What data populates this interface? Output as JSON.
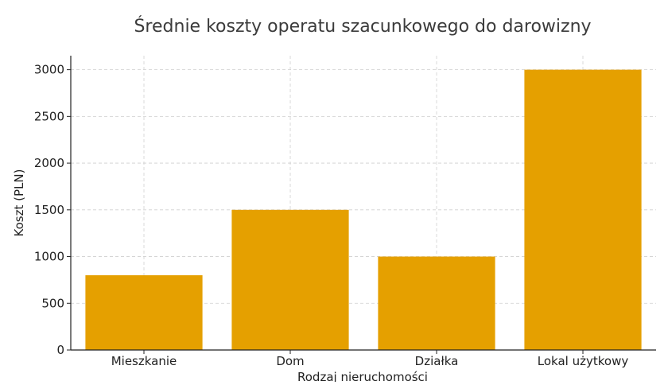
{
  "chart_data": {
    "type": "bar",
    "title": "Średnie koszty operatu szacunkowego do darowizny",
    "xlabel": "Rodzaj nieruchomości",
    "ylabel": "Koszt (PLN)",
    "categories": [
      "Mieszkanie",
      "Dom",
      "Działka",
      "Lokal użytkowy"
    ],
    "values": [
      800,
      1500,
      1000,
      3000
    ],
    "ylim": [
      0,
      3150
    ],
    "yticks": [
      0,
      500,
      1000,
      1500,
      2000,
      2500,
      3000
    ],
    "grid": true,
    "bar_color": "#e5a000"
  }
}
